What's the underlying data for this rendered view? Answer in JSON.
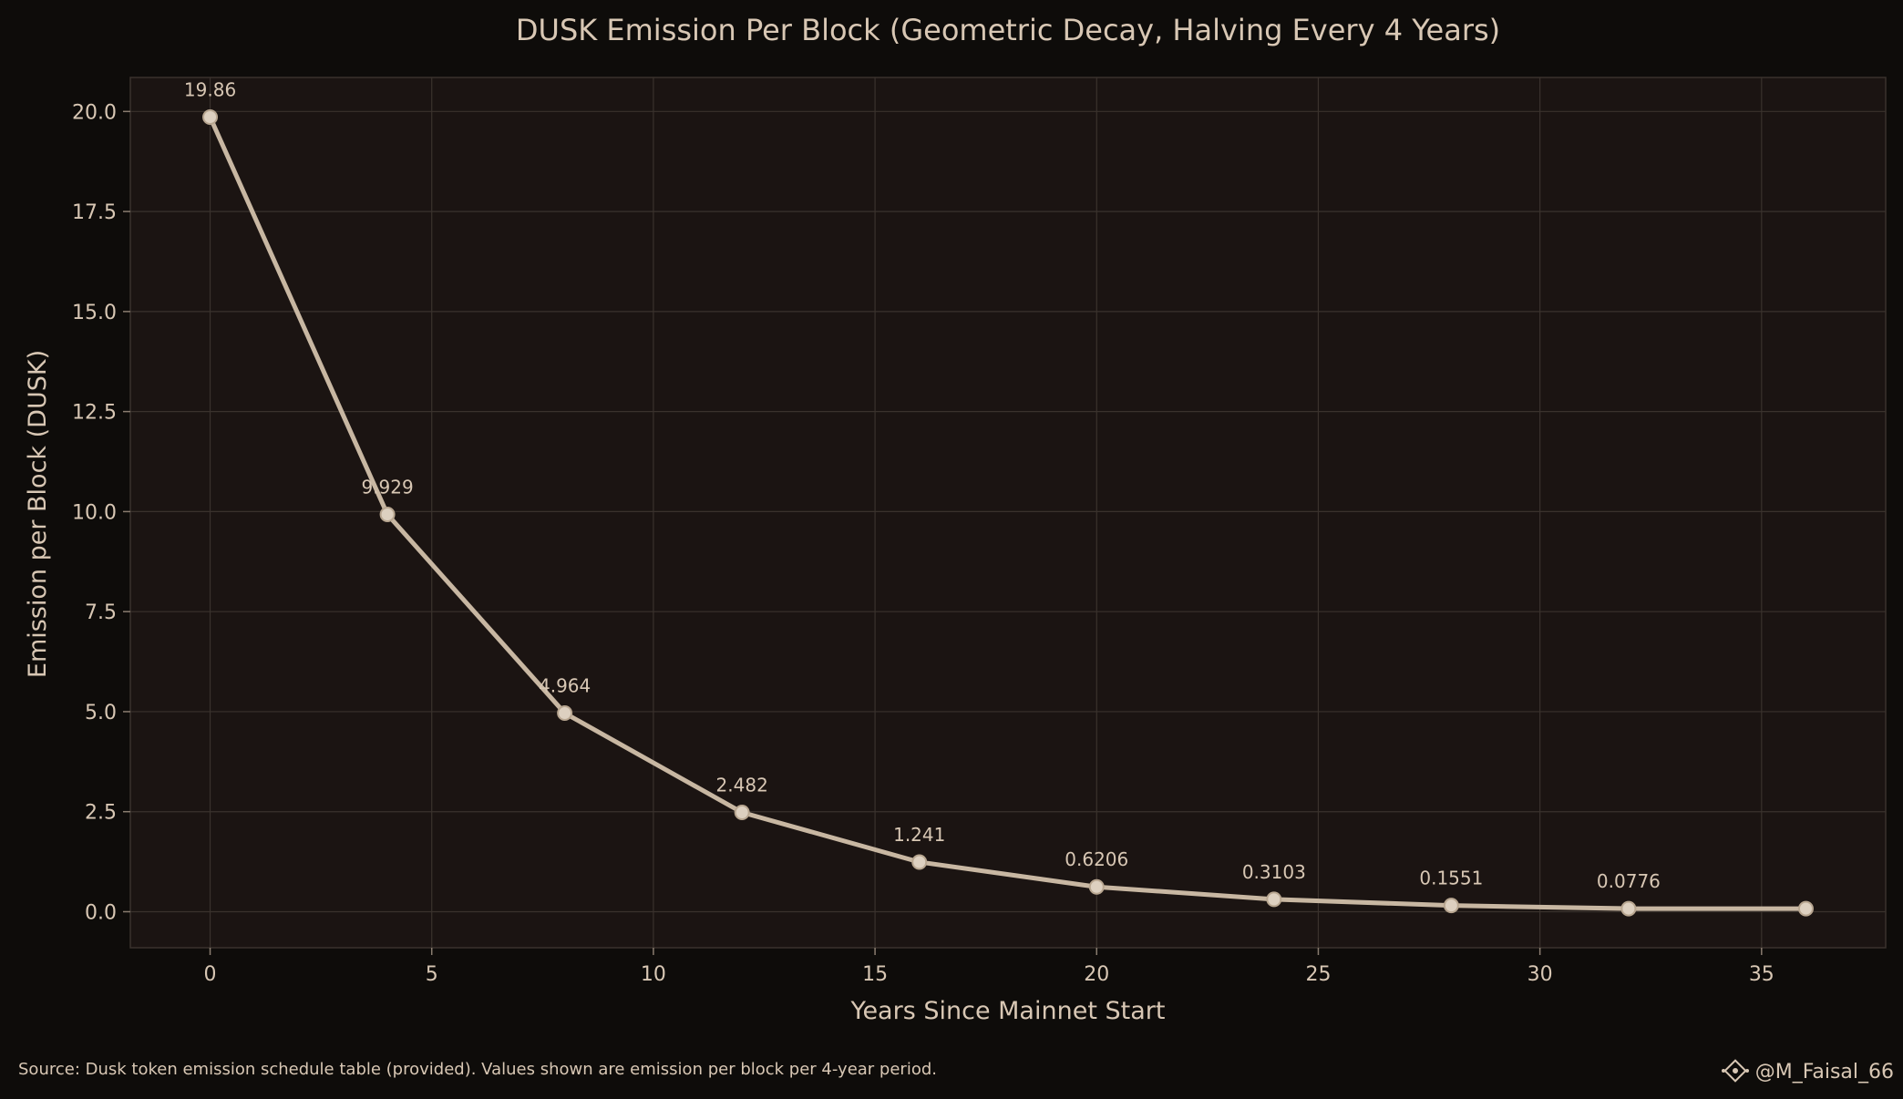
{
  "chart_data": {
    "type": "line",
    "title": "DUSK Emission Per Block (Geometric Decay, Halving Every 4 Years)",
    "xlabel": "Years Since Mainnet Start",
    "ylabel": "Emission per Block (DUSK)",
    "x": [
      0,
      4,
      8,
      12,
      16,
      20,
      24,
      28,
      32,
      36
    ],
    "series": [
      {
        "values": [
          19.86,
          9.929,
          4.964,
          2.482,
          1.241,
          0.6206,
          0.3103,
          0.1551,
          0.0776,
          0.0776
        ]
      }
    ],
    "data_labels": [
      "19.86",
      "9.929",
      "4.964",
      "2.482",
      "1.241",
      "0.6206",
      "0.3103",
      "0.1551",
      "0.0776"
    ],
    "xlim": [
      -1.8,
      37.8
    ],
    "ylim": [
      -0.9,
      20.85
    ],
    "xticks": [
      0,
      5,
      10,
      15,
      20,
      25,
      30,
      35
    ],
    "xtick_labels": [
      "0",
      "5",
      "10",
      "15",
      "20",
      "25",
      "30",
      "35"
    ],
    "yticks": [
      0,
      2.5,
      5,
      7.5,
      10,
      12.5,
      15,
      17.5,
      20
    ],
    "ytick_labels": [
      "0.0",
      "2.5",
      "5.0",
      "7.5",
      "10.0",
      "12.5",
      "15.0",
      "17.5",
      "20.0"
    ],
    "grid": true,
    "colors": {
      "background": "#0e0c0a",
      "plot_background": "#1b1412",
      "line": "#c8b7a2",
      "marker_fill": "#ddd0c0",
      "grid": "#3a322d",
      "text": "#d8c7b4"
    }
  },
  "footer": {
    "source": "Source: Dusk token emission schedule table (provided). Values shown are emission per block per 4-year period.",
    "watermark": "@M_Faisal_66"
  }
}
